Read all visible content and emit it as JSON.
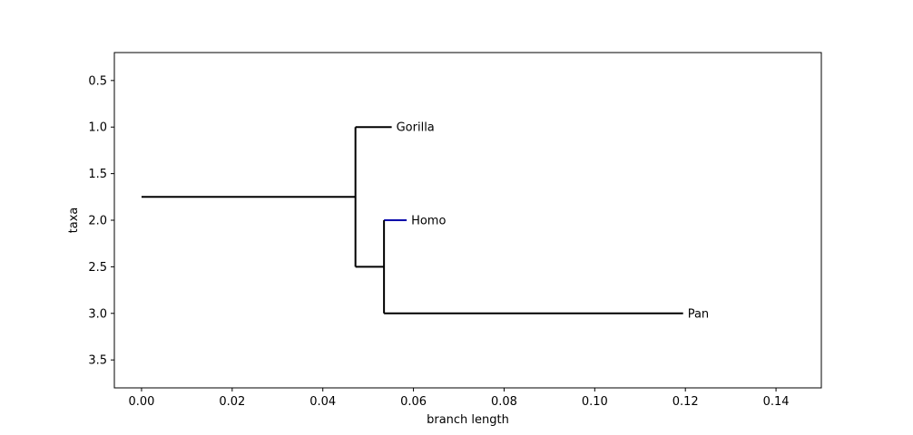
{
  "chart_data": {
    "type": "tree",
    "xlabel": "branch length",
    "ylabel": "taxa",
    "xlim": [
      -0.006,
      0.15
    ],
    "ylim": [
      3.8,
      0.2
    ],
    "x_ticks": [
      "0.00",
      "0.02",
      "0.04",
      "0.06",
      "0.08",
      "0.10",
      "0.12",
      "0.14"
    ],
    "x_tick_values": [
      0.0,
      0.02,
      0.04,
      0.06,
      0.08,
      0.1,
      0.12,
      0.14
    ],
    "y_ticks": [
      "0.5",
      "1.0",
      "1.5",
      "2.0",
      "2.5",
      "3.0",
      "3.5"
    ],
    "y_tick_values": [
      0.5,
      1.0,
      1.5,
      2.0,
      2.5,
      3.0,
      3.5
    ],
    "grid": false,
    "branches": [
      {
        "from": "root",
        "x0": 0.0,
        "x1": 0.0472,
        "y": 1.75,
        "color": "#000000"
      },
      {
        "from": "clade-1",
        "x0": 0.0472,
        "x1": 0.0552,
        "y": 1.0,
        "color": "#000000"
      },
      {
        "from": "clade-1",
        "x0": 0.0472,
        "x1": 0.0535,
        "y": 2.5,
        "color": "#000000"
      },
      {
        "from": "clade-2",
        "x0": 0.0535,
        "x1": 0.0585,
        "y": 2.0,
        "color": "#0000aa"
      },
      {
        "from": "clade-2",
        "x0": 0.0535,
        "x1": 0.1195,
        "y": 3.0,
        "color": "#000000"
      }
    ],
    "connectors": [
      {
        "x": 0.0472,
        "y0": 1.0,
        "y1": 2.5,
        "color": "#000000"
      },
      {
        "x": 0.0535,
        "y0": 2.0,
        "y1": 3.0,
        "color": "#000000"
      }
    ],
    "taxa": [
      {
        "name": "Gorilla",
        "x": 0.0552,
        "y": 1.0
      },
      {
        "name": "Homo",
        "x": 0.0585,
        "y": 2.0
      },
      {
        "name": "Pan",
        "x": 0.1195,
        "y": 3.0
      }
    ]
  }
}
